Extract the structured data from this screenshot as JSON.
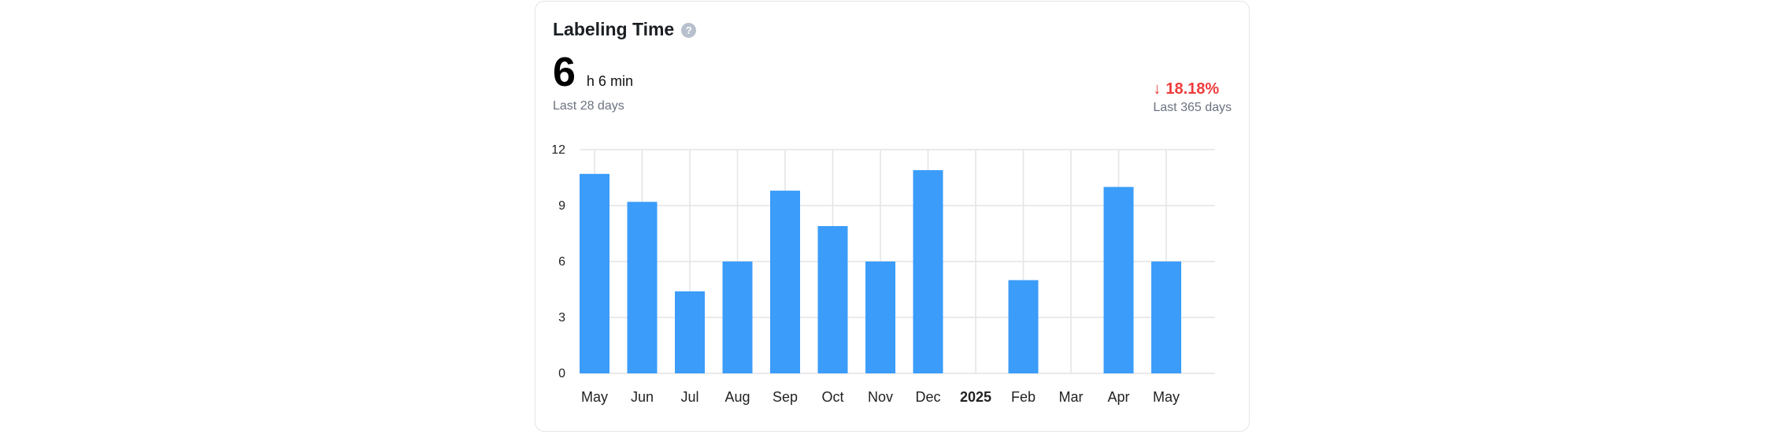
{
  "card": {
    "title": "Labeling Time",
    "help_icon": "question-circle-icon",
    "metric": {
      "value": "6",
      "unit": "h 6 min",
      "period": "Last 28 days"
    },
    "change": {
      "direction_icon": "arrow-down-icon",
      "value": "18.18%",
      "period": "Last 365 days"
    }
  },
  "chart_data": {
    "type": "bar",
    "categories": [
      "May",
      "Jun",
      "Jul",
      "Aug",
      "Sep",
      "Oct",
      "Nov",
      "Dec",
      "2025",
      "Feb",
      "Mar",
      "Apr",
      "May"
    ],
    "bold_categories": [
      "2025"
    ],
    "values": [
      10.7,
      9.2,
      4.4,
      6.0,
      9.8,
      7.9,
      6.0,
      10.9,
      0,
      5.0,
      0,
      10.0,
      6.0
    ],
    "yticks": [
      0,
      3,
      6,
      9,
      12
    ],
    "ylim": [
      0,
      12
    ],
    "grid": true,
    "title": "",
    "xlabel": "",
    "ylabel": "",
    "colors": {
      "bar": "#3b9cf9",
      "grid": "#e4e4e7",
      "negative_change": "#ef3b3b"
    }
  }
}
